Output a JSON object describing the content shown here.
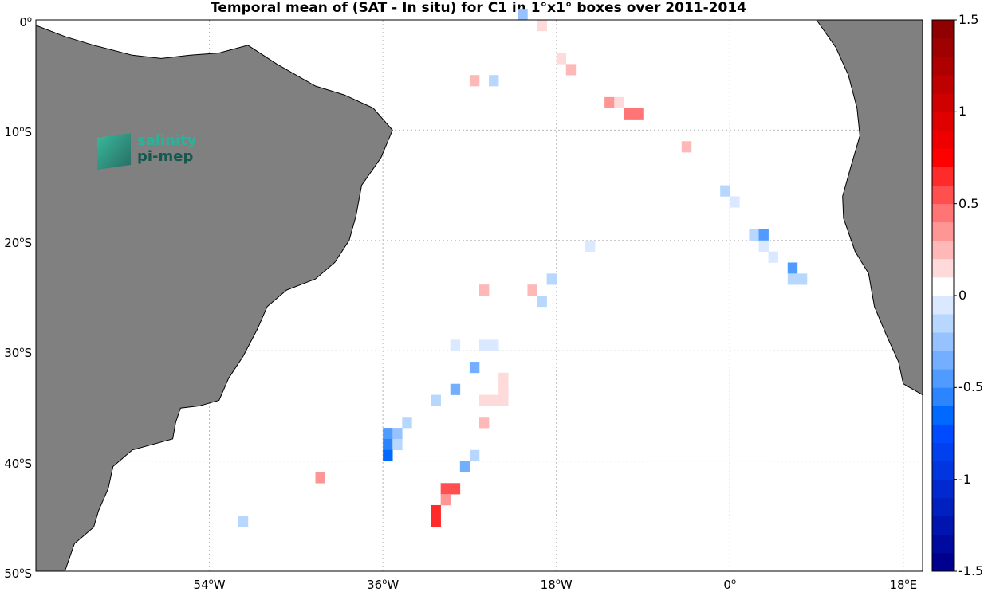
{
  "title": "Temporal mean of (SAT - In situ) for C1 in 1°x1° boxes over 2011-2014",
  "logo": {
    "line1": "salinity",
    "line2": "pi-mep"
  },
  "map": {
    "lon_range": [
      -72,
      20
    ],
    "lat_range": [
      -50,
      0
    ],
    "ocean_color": "#ffffff",
    "land_color": "#808080",
    "grid_color": "#b8b8b8",
    "lon_ticks": [
      {
        "value": -54,
        "num": "54",
        "hemi": "W"
      },
      {
        "value": -36,
        "num": "36",
        "hemi": "W"
      },
      {
        "value": -18,
        "num": "18",
        "hemi": "W"
      },
      {
        "value": 0,
        "num": "0",
        "hemi": ""
      },
      {
        "value": 18,
        "num": "18",
        "hemi": "E"
      }
    ],
    "lat_ticks": [
      {
        "value": 0,
        "num": "0",
        "hemi": ""
      },
      {
        "value": -10,
        "num": "10",
        "hemi": "S"
      },
      {
        "value": -20,
        "num": "20",
        "hemi": "S"
      },
      {
        "value": -30,
        "num": "30",
        "hemi": "S"
      },
      {
        "value": -40,
        "num": "40",
        "hemi": "S"
      },
      {
        "value": -50,
        "num": "50",
        "hemi": "S"
      }
    ],
    "south_america": [
      [
        -72,
        -0.5
      ],
      [
        -69,
        -1.5
      ],
      [
        -66,
        -2.3
      ],
      [
        -62,
        -3.2
      ],
      [
        -59,
        -3.5
      ],
      [
        -56,
        -3.2
      ],
      [
        -53,
        -3.0
      ],
      [
        -50,
        -2.3
      ],
      [
        -47,
        -4.0
      ],
      [
        -43,
        -6.0
      ],
      [
        -40,
        -6.8
      ],
      [
        -37,
        -8.0
      ],
      [
        -35,
        -10.0
      ],
      [
        -36.2,
        -12.5
      ],
      [
        -38.2,
        -15.0
      ],
      [
        -38.8,
        -17.8
      ],
      [
        -39.5,
        -20.0
      ],
      [
        -41,
        -22.0
      ],
      [
        -43,
        -23.5
      ],
      [
        -46,
        -24.5
      ],
      [
        -48,
        -26.0
      ],
      [
        -49,
        -28.0
      ],
      [
        -50.5,
        -30.5
      ],
      [
        -52,
        -32.5
      ],
      [
        -53,
        -34.5
      ],
      [
        -55,
        -35.0
      ],
      [
        -57,
        -35.2
      ],
      [
        -57.5,
        -36.5
      ],
      [
        -57.8,
        -38.0
      ],
      [
        -62,
        -39.0
      ],
      [
        -64,
        -40.5
      ],
      [
        -64.5,
        -42.5
      ],
      [
        -65.5,
        -44.5
      ],
      [
        -66,
        -46.0
      ],
      [
        -68,
        -47.5
      ],
      [
        -69,
        -50.0
      ],
      [
        -72,
        -50.0
      ]
    ],
    "africa": [
      [
        9,
        0
      ],
      [
        11,
        -2.5
      ],
      [
        12.3,
        -5.0
      ],
      [
        13.2,
        -8.0
      ],
      [
        13.5,
        -10.5
      ],
      [
        12.5,
        -13.5
      ],
      [
        11.7,
        -16.0
      ],
      [
        11.8,
        -18.0
      ],
      [
        13,
        -21.0
      ],
      [
        14.4,
        -23.0
      ],
      [
        15,
        -26.0
      ],
      [
        16.2,
        -28.5
      ],
      [
        17.5,
        -31.0
      ],
      [
        18,
        -33.0
      ],
      [
        20,
        -34.0
      ],
      [
        20,
        0
      ]
    ],
    "color_scale": {
      "min": -1.5,
      "max": 1.5,
      "step": 0.1,
      "colors_blue_to_red": [
        "#00008f",
        "#000a9f",
        "#0015af",
        "#0020bf",
        "#002acf",
        "#0035df",
        "#0040ef",
        "#004bff",
        "#0069ff",
        "#2a85ff",
        "#4f9bff",
        "#74afff",
        "#96c3ff",
        "#b8d7ff",
        "#dae9ff",
        "#ffffff",
        "#ffdada",
        "#ffb8b8",
        "#ff9696",
        "#ff7474",
        "#ff4f4f",
        "#ff2a2a",
        "#ff0000",
        "#ef0000",
        "#df0000",
        "#cf0000",
        "#bf0000",
        "#af0000",
        "#9f0000",
        "#8f0000"
      ],
      "labels": [
        "1.5",
        "1",
        "0.5",
        "0",
        "-0.5",
        "-1",
        "-1.5"
      ]
    }
  },
  "chart_data": {
    "type": "heatmap",
    "title": "Temporal mean of (SAT - In situ) for C1 in 1°x1° boxes over 2011-2014",
    "xlabel": "",
    "ylabel": "",
    "x_range_deg_lon": [
      -72,
      20
    ],
    "y_range_deg_lat": [
      -50,
      0
    ],
    "cell_size_deg": 1,
    "colorbar_range": [
      -1.5,
      1.5
    ],
    "cells": [
      {
        "lon": -22,
        "lat": 0,
        "value": -0.25
      },
      {
        "lon": -20,
        "lat": -1,
        "value": 0.15
      },
      {
        "lon": -18,
        "lat": -4,
        "value": 0.15
      },
      {
        "lon": -17,
        "lat": -5,
        "value": 0.2
      },
      {
        "lon": -27,
        "lat": -6,
        "value": 0.2
      },
      {
        "lon": -25,
        "lat": -6,
        "value": -0.15
      },
      {
        "lon": -13,
        "lat": -8,
        "value": 0.3
      },
      {
        "lon": -12,
        "lat": -8,
        "value": 0.15
      },
      {
        "lon": -11,
        "lat": -9,
        "value": 0.4
      },
      {
        "lon": -10,
        "lat": -9,
        "value": 0.4
      },
      {
        "lon": -5,
        "lat": -12,
        "value": 0.2
      },
      {
        "lon": -1,
        "lat": -16,
        "value": -0.15
      },
      {
        "lon": 0,
        "lat": -17,
        "value": -0.1
      },
      {
        "lon": -15,
        "lat": -21,
        "value": -0.1
      },
      {
        "lon": 2,
        "lat": -20,
        "value": -0.15
      },
      {
        "lon": 3,
        "lat": -20,
        "value": -0.45
      },
      {
        "lon": 3,
        "lat": -21,
        "value": -0.1
      },
      {
        "lon": 4,
        "lat": -22,
        "value": -0.1
      },
      {
        "lon": 6,
        "lat": -23,
        "value": -0.5
      },
      {
        "lon": 6,
        "lat": -24,
        "value": -0.15
      },
      {
        "lon": 7,
        "lat": -24,
        "value": -0.15
      },
      {
        "lon": -19,
        "lat": -24,
        "value": -0.2
      },
      {
        "lon": -26,
        "lat": -25,
        "value": 0.2
      },
      {
        "lon": -21,
        "lat": -25,
        "value": 0.2
      },
      {
        "lon": -20,
        "lat": -26,
        "value": -0.2
      },
      {
        "lon": -29,
        "lat": -30,
        "value": -0.1
      },
      {
        "lon": -26,
        "lat": -30,
        "value": -0.1
      },
      {
        "lon": -25,
        "lat": -30,
        "value": -0.1
      },
      {
        "lon": -27,
        "lat": -32,
        "value": -0.35
      },
      {
        "lon": -24,
        "lat": -33,
        "value": 0.1
      },
      {
        "lon": -24,
        "lat": -34,
        "value": 0.1
      },
      {
        "lon": -29,
        "lat": -34,
        "value": -0.35
      },
      {
        "lon": -26,
        "lat": -35,
        "value": 0.1
      },
      {
        "lon": -25,
        "lat": -35,
        "value": 0.1
      },
      {
        "lon": -24,
        "lat": -35,
        "value": 0.1
      },
      {
        "lon": -31,
        "lat": -35,
        "value": -0.15
      },
      {
        "lon": -26,
        "lat": -37,
        "value": 0.2
      },
      {
        "lon": -34,
        "lat": -37,
        "value": -0.15
      },
      {
        "lon": -36,
        "lat": -38,
        "value": -0.45
      },
      {
        "lon": -35,
        "lat": -38,
        "value": -0.3
      },
      {
        "lon": -36,
        "lat": -39,
        "value": -0.55
      },
      {
        "lon": -35,
        "lat": -39,
        "value": -0.15
      },
      {
        "lon": -36,
        "lat": -40,
        "value": -0.65
      },
      {
        "lon": -27,
        "lat": -40,
        "value": -0.15
      },
      {
        "lon": -28,
        "lat": -41,
        "value": -0.35
      },
      {
        "lon": -43,
        "lat": -42,
        "value": 0.3
      },
      {
        "lon": -30,
        "lat": -43,
        "value": 0.5
      },
      {
        "lon": -29,
        "lat": -43,
        "value": 0.5
      },
      {
        "lon": -30,
        "lat": -44,
        "value": 0.35
      },
      {
        "lon": -31,
        "lat": -45,
        "value": 0.6
      },
      {
        "lon": -31,
        "lat": -46,
        "value": 0.6
      },
      {
        "lon": -51,
        "lat": -46,
        "value": -0.2
      }
    ]
  }
}
